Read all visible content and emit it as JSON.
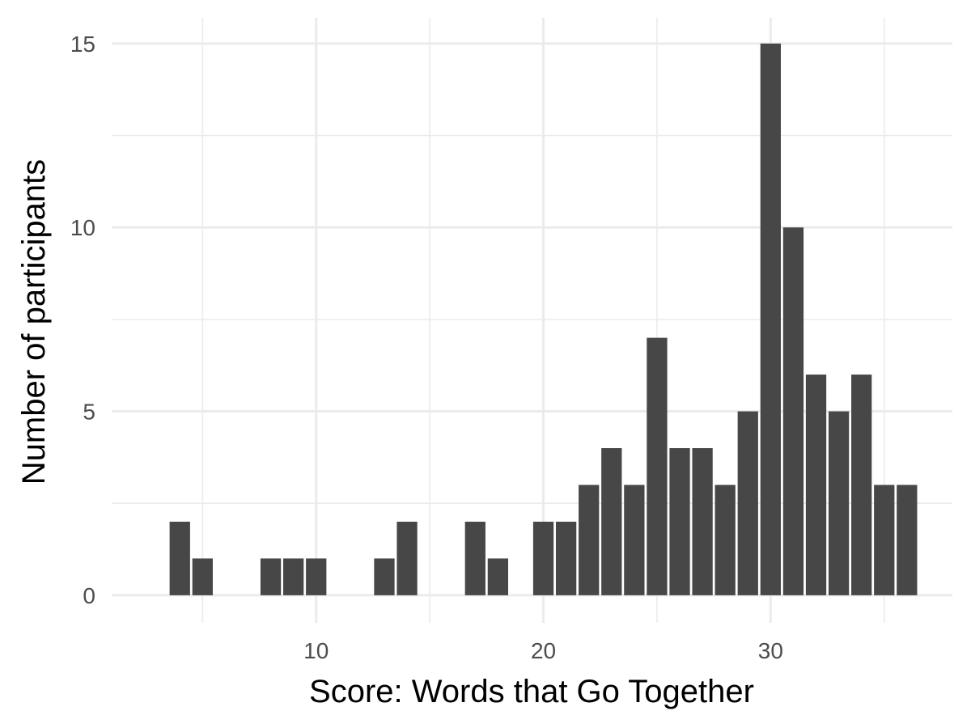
{
  "chart_data": {
    "type": "bar",
    "xlabel": "Score: Words that Go Together",
    "ylabel": "Number of participants",
    "x": [
      4,
      5,
      8,
      9,
      10,
      13,
      14,
      17,
      18,
      20,
      21,
      22,
      23,
      24,
      25,
      26,
      27,
      28,
      29,
      30,
      31,
      32,
      33,
      34,
      35,
      36
    ],
    "values": [
      2,
      1,
      1,
      1,
      1,
      1,
      2,
      2,
      1,
      2,
      2,
      3,
      4,
      3,
      7,
      4,
      4,
      3,
      5,
      15,
      10,
      6,
      5,
      6,
      3,
      3
    ],
    "xlim": [
      1,
      38
    ],
    "ylim": [
      -0.75,
      15.7
    ],
    "x_ticks": [
      10,
      20,
      30
    ],
    "x_tick_labels": [
      "10",
      "20",
      "30"
    ],
    "y_ticks": [
      0,
      5,
      10,
      15
    ],
    "y_tick_labels": [
      "0",
      "5",
      "10",
      "15"
    ],
    "grid": true,
    "colors": {
      "bar": "#474747",
      "grid": "#ebebeb",
      "tick_text": "#4d4d4d"
    }
  }
}
